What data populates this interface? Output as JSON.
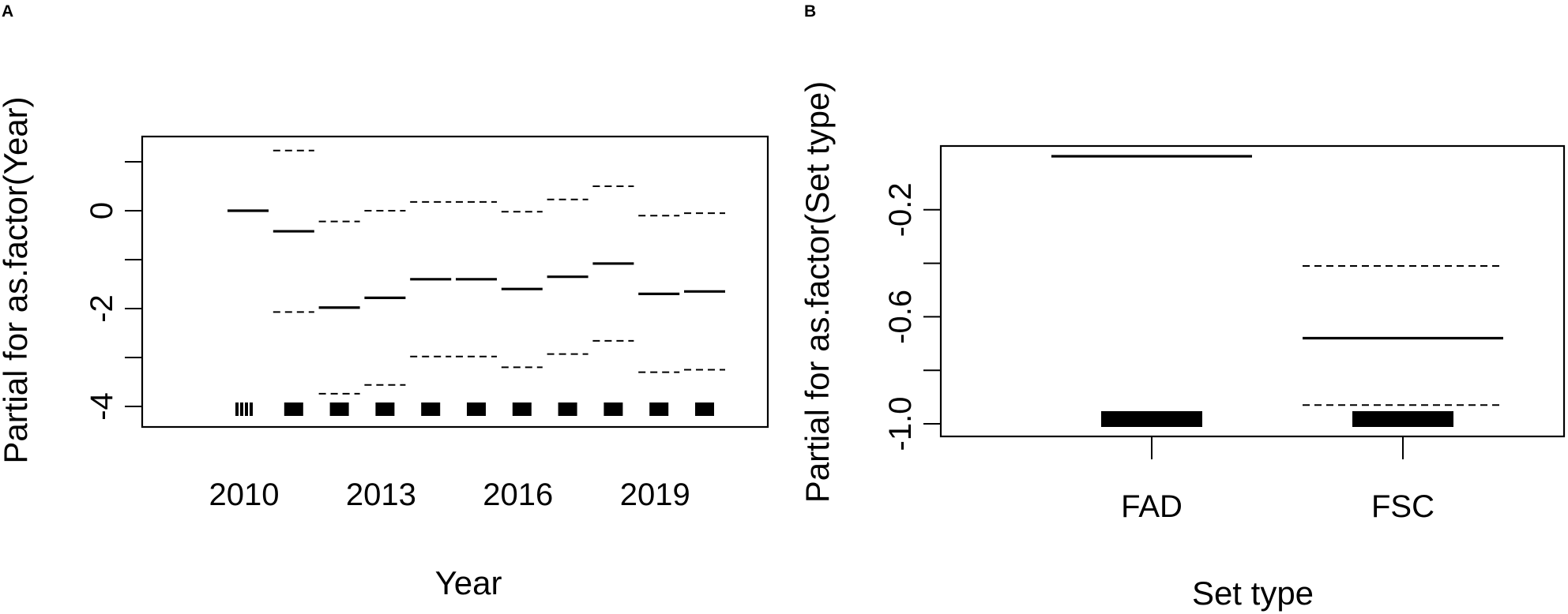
{
  "panels": {
    "A": "A",
    "B": "B"
  },
  "chart_data": [
    {
      "type": "line",
      "panel": "A",
      "xlabel": "Year",
      "ylabel": "Partial for as.factor(Year)",
      "x_tick_labels": [
        "2010",
        "2013",
        "2016",
        "2019"
      ],
      "y_ticks": [
        -4,
        -3,
        -2,
        -1,
        0,
        1
      ],
      "y_tick_labels": [
        "-4",
        "-2",
        "0"
      ],
      "ylim": [
        -4.45,
        1.5
      ],
      "categories": [
        "2010",
        "2011",
        "2012",
        "2013",
        "2014",
        "2015",
        "2016",
        "2017",
        "2018",
        "2019",
        "2020"
      ],
      "estimate": [
        0.0,
        -0.42,
        -1.98,
        -1.78,
        -1.4,
        -1.4,
        -1.6,
        -1.35,
        -1.08,
        -1.7,
        -1.65
      ],
      "upper": [
        null,
        1.23,
        -0.22,
        0.0,
        0.18,
        0.18,
        -0.02,
        0.23,
        0.5,
        -0.1,
        -0.05
      ],
      "lower": [
        null,
        -2.07,
        -3.74,
        -3.56,
        -2.98,
        -2.98,
        -3.2,
        -2.93,
        -2.66,
        -3.3,
        -3.25
      ],
      "rug": "bottom"
    },
    {
      "type": "line",
      "panel": "B",
      "xlabel": "Set type",
      "ylabel": "Partial for as.factor(Set type)",
      "categories": [
        "FAD",
        "FSC"
      ],
      "y_ticks": [
        -1.0,
        -0.8,
        -0.6,
        -0.4,
        -0.2
      ],
      "y_tick_labels": [
        "-1.0",
        "-0.6",
        "-0.2"
      ],
      "ylim": [
        -1.04,
        0.04
      ],
      "estimate": [
        0.0,
        -0.68
      ],
      "upper": [
        null,
        -0.41
      ],
      "lower": [
        null,
        -0.93
      ],
      "rug": "bottom"
    }
  ]
}
